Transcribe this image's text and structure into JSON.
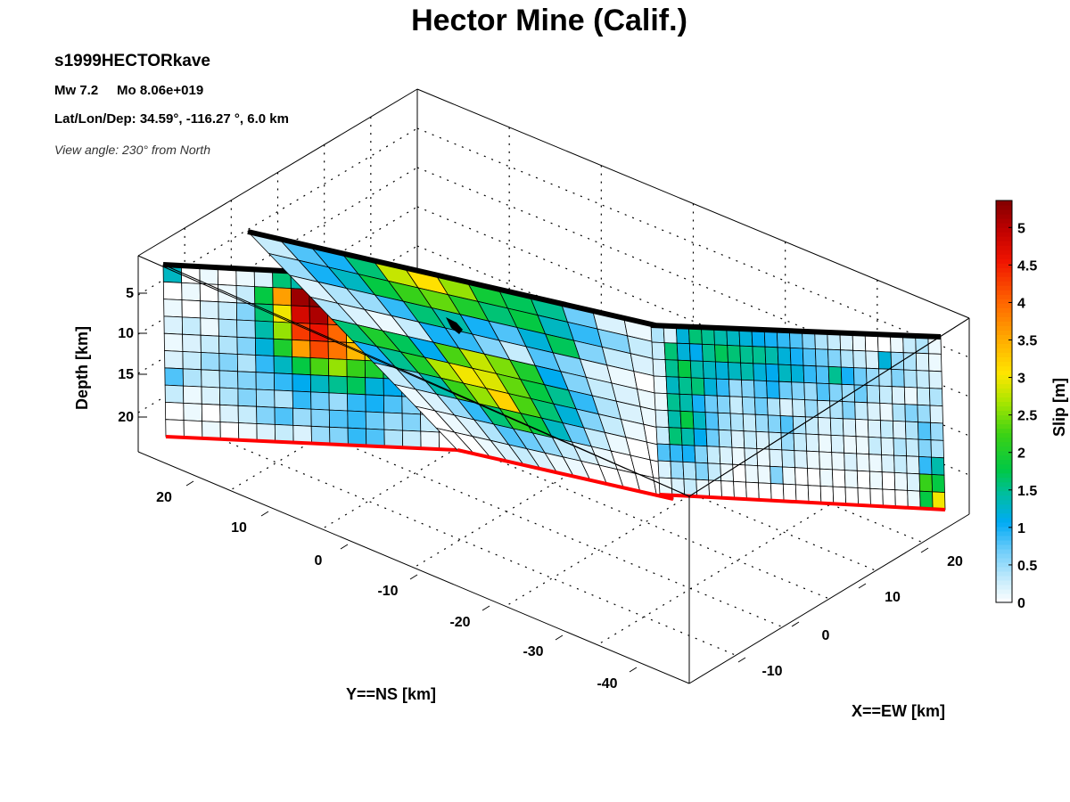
{
  "header": {
    "event_name": "s1999HECTORkave",
    "magnitude_line": "Mw 7.2     Mo 8.06e+019",
    "location_line": "Lat/Lon/Dep: 34.59°, -116.27 °, 6.0 km",
    "view_line": "View angle: 230° from North"
  },
  "chart_data": {
    "type": "heatmap",
    "title": "Hector Mine (Calif.)",
    "zlabel": "Depth [km]",
    "ylabel": "Y==NS [km]",
    "xlabel": "X==EW [km]",
    "colorbar_label": "Slip [m]",
    "depth_ticks": [
      "5",
      "10",
      "15",
      "20"
    ],
    "ns_ticks": [
      "20",
      "10",
      "0",
      "-10",
      "-20",
      "-30",
      "-40"
    ],
    "ew_ticks": [
      "20",
      "10",
      "0",
      "-10"
    ],
    "colorbar_ticks": [
      "0",
      "0.5",
      "1",
      "1.5",
      "2",
      "2.5",
      "3",
      "3.5",
      "4",
      "4.5",
      "5"
    ],
    "colorbar_range": [
      0,
      5.36
    ],
    "colormap": "jet-like (white at 0 to dark red at max)",
    "depth_range_km": [
      0,
      24
    ],
    "hypocenter_depth_km": 6.0,
    "segments": [
      {
        "name": "segment-1",
        "slip_m": [
          [
            1.3,
            0.0,
            0.1,
            0.0,
            0.1,
            0.2,
            1.6,
            1.4,
            2.0,
            2.5,
            2.9,
            3.5,
            3.8,
            4.0,
            4.3,
            1.8
          ],
          [
            0.0,
            0.1,
            0.0,
            0.1,
            0.3,
            1.8,
            3.6,
            5.2,
            5.3,
            4.6,
            3.8,
            3.2,
            2.8,
            2.1,
            1.9,
            2.4
          ],
          [
            0.1,
            0.0,
            0.2,
            0.3,
            0.6,
            1.6,
            3.0,
            4.8,
            5.1,
            4.2,
            3.3,
            2.7,
            2.2,
            1.7,
            1.4,
            1.2
          ],
          [
            0.2,
            0.3,
            0.1,
            0.4,
            0.5,
            1.4,
            2.6,
            4.3,
            4.6,
            4.0,
            3.0,
            2.3,
            1.9,
            1.6,
            1.3,
            1.8
          ],
          [
            0.1,
            0.2,
            0.3,
            0.4,
            0.6,
            1.2,
            2.0,
            3.6,
            4.2,
            3.9,
            3.4,
            2.8,
            2.6,
            1.9,
            2.0,
            1.5
          ],
          [
            0.2,
            0.3,
            0.5,
            0.6,
            0.4,
            0.9,
            1.3,
            1.8,
            2.3,
            2.6,
            2.2,
            2.0,
            1.6,
            1.4,
            2.3,
            1.7
          ],
          [
            0.8,
            0.4,
            0.3,
            0.5,
            0.6,
            0.7,
            0.9,
            1.1,
            1.3,
            1.5,
            1.7,
            1.2,
            1.1,
            0.9,
            1.0,
            0.8
          ],
          [
            0.3,
            0.1,
            0.2,
            0.4,
            0.6,
            0.5,
            0.4,
            0.9,
            0.7,
            0.5,
            0.9,
            1.0,
            0.8,
            0.6,
            0.4,
            0.3
          ],
          [
            0.0,
            0.1,
            0.0,
            0.2,
            0.3,
            0.6,
            0.8,
            0.5,
            0.6,
            0.8,
            0.9,
            0.7,
            0.5,
            0.6,
            0.3,
            0.2
          ],
          [
            0.0,
            0.0,
            0.1,
            0.0,
            0.1,
            0.2,
            0.3,
            0.2,
            0.5,
            0.6,
            0.9,
            0.8,
            0.4,
            0.3,
            0.1,
            0.0
          ]
        ]
      },
      {
        "name": "segment-2",
        "slip_m": [
          [
            0.3,
            0.8,
            1.0,
            1.6,
            2.8,
            3.1,
            2.6,
            1.9,
            1.7,
            1.5,
            0.7,
            0.2,
            0.1
          ],
          [
            0.5,
            1.0,
            1.3,
            1.8,
            2.2,
            2.4,
            2.0,
            1.6,
            1.8,
            1.3,
            0.9,
            0.6,
            0.3
          ],
          [
            0.2,
            0.4,
            0.5,
            0.9,
            1.6,
            1.4,
            1.0,
            0.8,
            1.2,
            1.7,
            0.6,
            0.3,
            0.2
          ],
          [
            0.4,
            0.2,
            0.1,
            0.3,
            1.0,
            0.9,
            0.6,
            0.3,
            0.8,
            0.6,
            0.2,
            0.1,
            0.0
          ],
          [
            1.6,
            2.0,
            1.7,
            1.1,
            2.3,
            2.8,
            2.5,
            2.0,
            1.1,
            0.6,
            0.3,
            0.2,
            0.1
          ],
          [
            1.0,
            1.5,
            2.0,
            2.7,
            3.0,
            2.9,
            2.4,
            1.8,
            1.5,
            0.9,
            0.4,
            0.2,
            0.1
          ],
          [
            0.3,
            0.6,
            1.4,
            2.2,
            2.6,
            3.2,
            2.3,
            1.6,
            1.2,
            0.6,
            0.3,
            0.1,
            0.0
          ],
          [
            0.1,
            0.2,
            0.5,
            0.9,
            1.6,
            2.1,
            1.8,
            1.3,
            0.7,
            0.3,
            0.1,
            0.0,
            0.0
          ],
          [
            0.0,
            0.1,
            0.2,
            0.4,
            0.8,
            0.7,
            0.5,
            0.3,
            0.2,
            0.1,
            0.0,
            0.0,
            0.0
          ],
          [
            0.0,
            0.0,
            0.1,
            0.2,
            0.3,
            0.2,
            0.1,
            0.1,
            0.0,
            0.0,
            0.0,
            0.0,
            0.0
          ]
        ]
      },
      {
        "name": "segment-3",
        "slip_m": [
          [
            0.4,
            0.2,
            1.2,
            1.6,
            1.5,
            1.4,
            1.3,
            1.2,
            1.1,
            1.0,
            0.9,
            0.8,
            0.6,
            0.4,
            0.3,
            0.2,
            0.1,
            0.0,
            0.0,
            0.1,
            0.3,
            0.4,
            0.1
          ],
          [
            0.3,
            1.6,
            1.2,
            1.1,
            1.5,
            1.7,
            1.6,
            1.5,
            1.5,
            1.4,
            1.2,
            1.0,
            0.8,
            0.7,
            0.6,
            0.4,
            0.3,
            0.2,
            1.2,
            0.5,
            0.4,
            0.2,
            0.1
          ],
          [
            0.2,
            1.5,
            1.8,
            1.4,
            1.3,
            1.2,
            1.3,
            1.4,
            1.2,
            1.1,
            1.3,
            1.2,
            0.9,
            0.8,
            1.5,
            1.0,
            0.7,
            0.5,
            0.4,
            0.6,
            0.4,
            0.3,
            0.2
          ],
          [
            0.1,
            1.3,
            1.5,
            1.6,
            1.2,
            0.9,
            0.5,
            0.6,
            0.8,
            1.0,
            0.7,
            0.6,
            0.5,
            0.8,
            0.6,
            0.5,
            0.7,
            0.4,
            0.3,
            0.2,
            0.1,
            0.3,
            0.4
          ],
          [
            0.1,
            1.5,
            1.4,
            1.0,
            0.7,
            0.6,
            0.3,
            0.5,
            0.7,
            0.4,
            0.2,
            0.3,
            0.5,
            0.3,
            0.4,
            0.6,
            0.3,
            0.2,
            0.1,
            0.4,
            0.6,
            0.5,
            0.2
          ],
          [
            0.2,
            1.4,
            1.8,
            1.3,
            0.8,
            0.5,
            0.4,
            0.3,
            0.5,
            0.6,
            0.8,
            0.4,
            0.3,
            0.2,
            0.3,
            0.2,
            0.1,
            0.2,
            0.3,
            0.2,
            0.4,
            0.8,
            0.5
          ],
          [
            0.3,
            1.6,
            1.4,
            1.1,
            0.7,
            0.4,
            0.2,
            0.3,
            0.2,
            0.3,
            0.5,
            0.3,
            0.2,
            0.1,
            0.2,
            0.1,
            0.1,
            0.3,
            0.2,
            0.4,
            0.3,
            0.6,
            0.4
          ],
          [
            0.8,
            0.9,
            1.0,
            0.6,
            0.3,
            0.2,
            0.1,
            0.2,
            0.1,
            0.2,
            0.3,
            0.2,
            0.1,
            0.1,
            0.1,
            0.2,
            0.1,
            0.1,
            0.2,
            0.3,
            0.2,
            0.9,
            1.4
          ],
          [
            0.2,
            0.5,
            0.4,
            0.6,
            0.3,
            0.1,
            0.0,
            0.1,
            0.1,
            0.6,
            0.1,
            0.0,
            0.0,
            0.1,
            0.0,
            0.1,
            0.0,
            0.1,
            0.0,
            0.1,
            0.2,
            2.2,
            1.8
          ],
          [
            0.1,
            0.2,
            0.3,
            0.1,
            0.0,
            0.0,
            0.0,
            0.0,
            0.0,
            0.0,
            0.0,
            0.0,
            0.0,
            0.0,
            0.0,
            0.0,
            0.0,
            0.0,
            0.0,
            0.0,
            0.1,
            1.8,
            3.0
          ]
        ]
      }
    ]
  }
}
